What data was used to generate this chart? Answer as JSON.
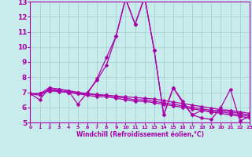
{
  "xlabel": "Windchill (Refroidissement éolien,°C)",
  "bg_color": "#c8ecec",
  "grid_color": "#a0cccc",
  "line_color": "#aa00aa",
  "markersize": 2.5,
  "linewidth": 0.9,
  "xlim": [
    0,
    23
  ],
  "ylim": [
    5,
    13
  ],
  "yticks": [
    5,
    6,
    7,
    8,
    9,
    10,
    11,
    12,
    13
  ],
  "xticks": [
    0,
    1,
    2,
    3,
    4,
    5,
    6,
    7,
    8,
    9,
    10,
    11,
    12,
    13,
    14,
    15,
    16,
    17,
    18,
    19,
    20,
    21,
    22,
    23
  ],
  "series": [
    [
      6.9,
      6.5,
      7.3,
      7.2,
      7.1,
      6.2,
      7.0,
      7.8,
      8.8,
      10.7,
      13.2,
      11.5,
      13.3,
      9.8,
      5.5,
      7.3,
      6.3,
      5.5,
      5.8,
      5.7,
      5.6,
      5.5,
      5.4,
      5.3
    ],
    [
      6.9,
      6.9,
      7.3,
      7.2,
      7.1,
      7.0,
      6.9,
      7.9,
      9.3,
      10.7,
      13.2,
      11.5,
      13.3,
      9.8,
      5.5,
      7.3,
      6.4,
      5.5,
      5.3,
      5.2,
      6.0,
      7.2,
      5.1,
      5.4
    ],
    [
      6.9,
      6.8,
      7.2,
      7.1,
      7.0,
      6.9,
      6.8,
      6.7,
      6.7,
      6.6,
      6.5,
      6.4,
      6.4,
      6.3,
      6.2,
      6.1,
      6.0,
      5.9,
      5.8,
      5.7,
      5.7,
      5.6,
      5.5,
      5.4
    ],
    [
      6.9,
      6.9,
      7.1,
      7.1,
      7.0,
      6.9,
      6.9,
      6.8,
      6.8,
      6.7,
      6.6,
      6.5,
      6.5,
      6.4,
      6.3,
      6.2,
      6.1,
      6.0,
      5.9,
      5.8,
      5.8,
      5.7,
      5.6,
      5.5
    ],
    [
      6.9,
      6.9,
      7.1,
      7.05,
      7.0,
      6.95,
      6.9,
      6.85,
      6.8,
      6.75,
      6.7,
      6.65,
      6.6,
      6.55,
      6.45,
      6.35,
      6.25,
      6.15,
      6.05,
      5.95,
      5.85,
      5.8,
      5.7,
      5.6
    ]
  ]
}
